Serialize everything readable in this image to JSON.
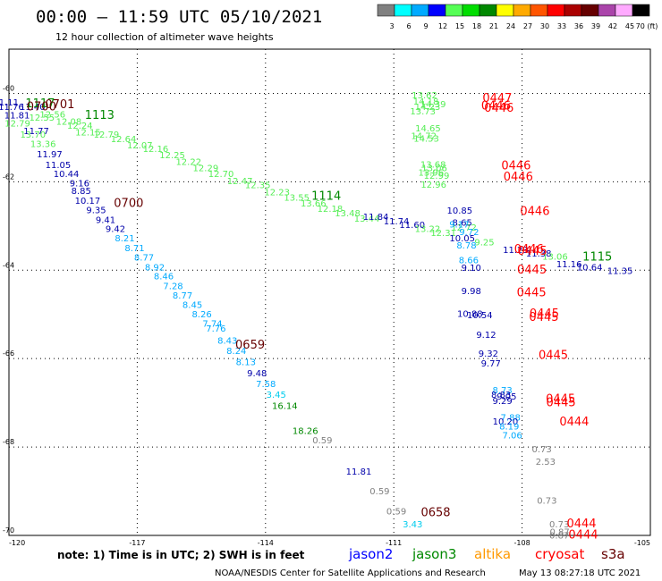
{
  "header": {
    "title": "00:00 – 11:59 UTC 05/10/2021",
    "subtitle": "12 hour collection of altimeter wave heights"
  },
  "colorbar": {
    "colors": [
      "#808080",
      "#00ffff",
      "#00aaff",
      "#0000ff",
      "#55ff55",
      "#00dd00",
      "#008800",
      "#ffff00",
      "#ffaa00",
      "#ff5500",
      "#ff0000",
      "#aa0000",
      "#660000",
      "#aa44aa",
      "#ffaaff",
      "#000000"
    ],
    "labels": [
      "3",
      "6",
      "9",
      "12",
      "15",
      "18",
      "21",
      "24",
      "27",
      "30",
      "33",
      "36",
      "39",
      "42",
      "45",
      "70 (ft)"
    ]
  },
  "footer": {
    "note": "note: 1) Time is in UTC; 2) SWH is in feet",
    "satellites": [
      {
        "name": "jason2",
        "color": "#0000ff"
      },
      {
        "name": "jason3",
        "color": "#008800"
      },
      {
        "name": "altika",
        "color": "#ff9900"
      },
      {
        "name": "cryosat",
        "color": "#ff0000"
      },
      {
        "name": "s3a",
        "color": "#660000"
      }
    ],
    "credit": "NOAA/NESDIS Center for Satellite Applications and Research",
    "timestamp": "May 13 08:27:18 UTC 2021"
  },
  "chart_data": {
    "type": "scatter",
    "title": "00:00 – 11:59 UTC 05/10/2021",
    "subtitle": "12 hour collection of altimeter wave heights",
    "xlim": [
      -120,
      -105
    ],
    "ylim": [
      -70,
      -59
    ],
    "xticks": [
      {
        "v": -120,
        "t": "-120"
      },
      {
        "v": -117,
        "t": "-117"
      },
      {
        "v": -114,
        "t": "-114"
      },
      {
        "v": -111,
        "t": "-111"
      },
      {
        "v": -108,
        "t": "-108"
      },
      {
        "v": -105,
        "t": "-105"
      }
    ],
    "yticks": [
      {
        "v": -60,
        "t": "-60"
      },
      {
        "v": -62,
        "t": "-62"
      },
      {
        "v": -64,
        "t": "-64"
      },
      {
        "v": -66,
        "t": "-66"
      },
      {
        "v": -68,
        "t": "-68"
      },
      {
        "v": -70,
        "t": "-70"
      }
    ],
    "grid": true,
    "swh_points": [
      {
        "x": -120.07,
        "y": -60.27,
        "v": "11.11",
        "c": "#0000aa"
      },
      {
        "x": -119.95,
        "y": -60.37,
        "v": "11.76",
        "c": "#0000aa"
      },
      {
        "x": -119.45,
        "y": -60.37,
        "v": "11.40",
        "c": "#0000aa"
      },
      {
        "x": -119.81,
        "y": -60.57,
        "v": "11.81",
        "c": "#0000aa"
      },
      {
        "x": -119.23,
        "y": -60.62,
        "v": "12.55",
        "c": "#55ee55"
      },
      {
        "x": -118.98,
        "y": -60.55,
        "v": "12.56",
        "c": "#55ee55"
      },
      {
        "x": -118.6,
        "y": -60.71,
        "v": "12.08",
        "c": "#55ee55"
      },
      {
        "x": -118.34,
        "y": -60.8,
        "v": "12.24",
        "c": "#55ee55"
      },
      {
        "x": -119.8,
        "y": -60.75,
        "v": "12.79",
        "c": "#55ee55"
      },
      {
        "x": -119.36,
        "y": -60.92,
        "v": "11.77",
        "c": "#0000aa"
      },
      {
        "x": -118.15,
        "y": -60.95,
        "v": "12.15",
        "c": "#55ee55"
      },
      {
        "x": -117.72,
        "y": -61.0,
        "v": "12.79",
        "c": "#55ee55"
      },
      {
        "x": -117.32,
        "y": -61.1,
        "v": "12.64",
        "c": "#55ee55"
      },
      {
        "x": -116.94,
        "y": -61.24,
        "v": "12.07",
        "c": "#55ee55"
      },
      {
        "x": -116.57,
        "y": -61.33,
        "v": "12.16",
        "c": "#55ee55"
      },
      {
        "x": -116.18,
        "y": -61.47,
        "v": "12.25",
        "c": "#55ee55"
      },
      {
        "x": -115.8,
        "y": -61.62,
        "v": "12.22",
        "c": "#55ee55"
      },
      {
        "x": -115.4,
        "y": -61.76,
        "v": "12.29",
        "c": "#55ee55"
      },
      {
        "x": -115.04,
        "y": -61.89,
        "v": "12.70",
        "c": "#55ee55"
      },
      {
        "x": -114.6,
        "y": -62.05,
        "v": "12.47",
        "c": "#55ee55"
      },
      {
        "x": -114.18,
        "y": -62.14,
        "v": "12.35",
        "c": "#55ee55"
      },
      {
        "x": -113.73,
        "y": -62.31,
        "v": "12.23",
        "c": "#55ee55"
      },
      {
        "x": -113.27,
        "y": -62.43,
        "v": "13.55",
        "c": "#55ee55"
      },
      {
        "x": -112.88,
        "y": -62.56,
        "v": "13.66",
        "c": "#55ee55"
      },
      {
        "x": -112.49,
        "y": -62.68,
        "v": "12.18",
        "c": "#55ee55"
      },
      {
        "x": -112.08,
        "y": -62.78,
        "v": "13.48",
        "c": "#55ee55"
      },
      {
        "x": -111.63,
        "y": -62.9,
        "v": "13.44",
        "c": "#55ee55"
      },
      {
        "x": -119.44,
        "y": -61.0,
        "v": "13.70",
        "c": "#55ee55"
      },
      {
        "x": -119.2,
        "y": -61.21,
        "v": "13.36",
        "c": "#55ee55"
      },
      {
        "x": -119.05,
        "y": -61.45,
        "v": "11.97",
        "c": "#0000aa"
      },
      {
        "x": -118.85,
        "y": -61.69,
        "v": "11.05",
        "c": "#0000aa"
      },
      {
        "x": -118.66,
        "y": -61.89,
        "v": "10.44",
        "c": "#0000aa"
      },
      {
        "x": -118.35,
        "y": -62.1,
        "v": "9.16",
        "c": "#0000aa"
      },
      {
        "x": -118.31,
        "y": -62.28,
        "v": "8.85",
        "c": "#0000aa"
      },
      {
        "x": -118.16,
        "y": -62.5,
        "v": "10.17",
        "c": "#0000aa"
      },
      {
        "x": -117.96,
        "y": -62.71,
        "v": "9.35",
        "c": "#0000aa"
      },
      {
        "x": -117.74,
        "y": -62.93,
        "v": "9.41",
        "c": "#0000aa"
      },
      {
        "x": -117.51,
        "y": -63.14,
        "v": "9.42",
        "c": "#0000aa"
      },
      {
        "x": -117.29,
        "y": -63.35,
        "v": "8.21",
        "c": "#00aaff"
      },
      {
        "x": -117.06,
        "y": -63.57,
        "v": "8.71",
        "c": "#00aaff"
      },
      {
        "x": -116.84,
        "y": -63.78,
        "v": "8.77",
        "c": "#00aaff"
      },
      {
        "x": -116.59,
        "y": -64.0,
        "v": "8.92",
        "c": "#00aaff"
      },
      {
        "x": -116.38,
        "y": -64.21,
        "v": "8.46",
        "c": "#00aaff"
      },
      {
        "x": -116.16,
        "y": -64.43,
        "v": "7.28",
        "c": "#00aaff"
      },
      {
        "x": -115.94,
        "y": -64.64,
        "v": "8.77",
        "c": "#00aaff"
      },
      {
        "x": -115.71,
        "y": -64.85,
        "v": "8.45",
        "c": "#00aaff"
      },
      {
        "x": -115.49,
        "y": -65.07,
        "v": "8.26",
        "c": "#00aaff"
      },
      {
        "x": -115.24,
        "y": -65.28,
        "v": "7.74",
        "c": "#00aaff"
      },
      {
        "x": -115.16,
        "y": -65.39,
        "v": "7.76",
        "c": "#00aaff"
      },
      {
        "x": -114.89,
        "y": -65.66,
        "v": "8.43",
        "c": "#00aaff"
      },
      {
        "x": -114.68,
        "y": -65.9,
        "v": "8.24",
        "c": "#00aaff"
      },
      {
        "x": -114.46,
        "y": -66.15,
        "v": "8.13",
        "c": "#00aaff"
      },
      {
        "x": -114.2,
        "y": -66.4,
        "v": "9.48",
        "c": "#0000aa"
      },
      {
        "x": -113.99,
        "y": -66.64,
        "v": "7.58",
        "c": "#00aaff"
      },
      {
        "x": -113.75,
        "y": -66.89,
        "v": "3.45",
        "c": "#00ccee"
      },
      {
        "x": -113.55,
        "y": -67.14,
        "v": "16.14",
        "c": "#008800"
      },
      {
        "x": -113.07,
        "y": -67.71,
        "v": "18.26",
        "c": "#008800"
      },
      {
        "x": -112.67,
        "y": -67.92,
        "v": "0.59",
        "c": "#808080"
      },
      {
        "x": -111.82,
        "y": -68.63,
        "v": "11.81",
        "c": "#0000aa"
      },
      {
        "x": -111.33,
        "y": -69.07,
        "v": "0.59",
        "c": "#808080"
      },
      {
        "x": -110.94,
        "y": -69.52,
        "v": "0.59",
        "c": "#808080"
      },
      {
        "x": -110.56,
        "y": -69.82,
        "v": "3.43",
        "c": "#00ccee"
      },
      {
        "x": -111.42,
        "y": -62.86,
        "v": "11.84",
        "c": "#0000aa"
      },
      {
        "x": -110.94,
        "y": -62.96,
        "v": "11.74",
        "c": "#0000aa"
      },
      {
        "x": -110.57,
        "y": -63.04,
        "v": "11.60",
        "c": "#0000aa"
      },
      {
        "x": -110.21,
        "y": -63.14,
        "v": "13.22",
        "c": "#55ee55"
      },
      {
        "x": -109.84,
        "y": -63.23,
        "v": "12.31",
        "c": "#55ee55"
      },
      {
        "x": -109.36,
        "y": -63.1,
        "v": "12.72",
        "c": "#55ee55"
      },
      {
        "x": -109.24,
        "y": -63.21,
        "v": "9.72",
        "c": "#00aaff"
      },
      {
        "x": -109.4,
        "y": -63.35,
        "v": "10.05",
        "c": "#0000aa"
      },
      {
        "x": -108.88,
        "y": -63.44,
        "v": "9.25",
        "c": "#55ee55"
      },
      {
        "x": -109.3,
        "y": -63.51,
        "v": "8.78",
        "c": "#00aaff"
      },
      {
        "x": -109.46,
        "y": -62.72,
        "v": "10.85",
        "c": "#0000aa"
      },
      {
        "x": -109.4,
        "y": -62.99,
        "v": "8.65",
        "c": "#0000aa"
      },
      {
        "x": -109.47,
        "y": -63.03,
        "v": "9.17",
        "c": "#00aaff"
      },
      {
        "x": -109.25,
        "y": -63.84,
        "v": "8.66",
        "c": "#00aaff"
      },
      {
        "x": -109.19,
        "y": -64.01,
        "v": "9.10",
        "c": "#0000aa"
      },
      {
        "x": -108.15,
        "y": -63.61,
        "v": "11.23",
        "c": "#0000aa"
      },
      {
        "x": -107.61,
        "y": -63.69,
        "v": "11.38",
        "c": "#0000aa"
      },
      {
        "x": -107.23,
        "y": -63.76,
        "v": "13.06",
        "c": "#55ee55"
      },
      {
        "x": -106.9,
        "y": -63.93,
        "v": "11.16",
        "c": "#0000aa"
      },
      {
        "x": -106.42,
        "y": -64.0,
        "v": "10.64",
        "c": "#0000aa"
      },
      {
        "x": -105.71,
        "y": -64.09,
        "v": "11.35",
        "c": "#0000aa"
      },
      {
        "x": -109.19,
        "y": -64.54,
        "v": "9.98",
        "c": "#0000aa"
      },
      {
        "x": -109.22,
        "y": -65.06,
        "v": "10.88",
        "c": "#0000aa"
      },
      {
        "x": -108.99,
        "y": -65.09,
        "v": "10.54",
        "c": "#0000aa"
      },
      {
        "x": -108.84,
        "y": -65.53,
        "v": "9.12",
        "c": "#0000aa"
      },
      {
        "x": -108.79,
        "y": -65.96,
        "v": "9.32",
        "c": "#0000aa"
      },
      {
        "x": -108.73,
        "y": -66.18,
        "v": "9.77",
        "c": "#0000aa"
      },
      {
        "x": -108.46,
        "y": -66.78,
        "v": "8.73",
        "c": "#00aaff"
      },
      {
        "x": -108.49,
        "y": -66.89,
        "v": "8.83",
        "c": "#0000aa"
      },
      {
        "x": -108.36,
        "y": -66.93,
        "v": "9.05",
        "c": "#0000aa"
      },
      {
        "x": -108.46,
        "y": -67.03,
        "v": "9.29",
        "c": "#0000aa"
      },
      {
        "x": -108.27,
        "y": -67.4,
        "v": "7.88",
        "c": "#00aaff"
      },
      {
        "x": -108.39,
        "y": -67.49,
        "v": "10.20",
        "c": "#0000aa"
      },
      {
        "x": -108.3,
        "y": -67.6,
        "v": "8.19",
        "c": "#00aaff"
      },
      {
        "x": -108.23,
        "y": -67.81,
        "v": "7.06",
        "c": "#00aaff"
      },
      {
        "x": -107.54,
        "y": -68.12,
        "v": "0.73",
        "c": "#808080"
      },
      {
        "x": -107.45,
        "y": -68.4,
        "v": "2.53",
        "c": "#808080"
      },
      {
        "x": -107.42,
        "y": -69.28,
        "v": "0.73",
        "c": "#808080"
      },
      {
        "x": -107.13,
        "y": -69.82,
        "v": "0.73",
        "c": "#808080"
      },
      {
        "x": -107.12,
        "y": -69.99,
        "v": "0.87",
        "c": "#808080"
      },
      {
        "x": -107.13,
        "y": -70.07,
        "v": "0.87",
        "c": "#808080"
      },
      {
        "x": -110.28,
        "y": -60.11,
        "v": "13.62",
        "c": "#55ee55"
      },
      {
        "x": -110.25,
        "y": -60.25,
        "v": "14.18",
        "c": "#55ee55"
      },
      {
        "x": -110.08,
        "y": -60.31,
        "v": "14.39",
        "c": "#55ee55"
      },
      {
        "x": -110.21,
        "y": -60.38,
        "v": "14.23",
        "c": "#55ee55"
      },
      {
        "x": -110.32,
        "y": -60.48,
        "v": "13.73",
        "c": "#55ee55"
      },
      {
        "x": -110.2,
        "y": -60.86,
        "v": "14.65",
        "c": "#55ee55"
      },
      {
        "x": -110.3,
        "y": -61.03,
        "v": "14.72",
        "c": "#55ee55"
      },
      {
        "x": -110.24,
        "y": -61.09,
        "v": "14.53",
        "c": "#55ee55"
      },
      {
        "x": -110.08,
        "y": -61.68,
        "v": "13.68",
        "c": "#55ee55"
      },
      {
        "x": -110.05,
        "y": -61.76,
        "v": "13.06",
        "c": "#55ee55"
      },
      {
        "x": -110.13,
        "y": -61.86,
        "v": "13.96",
        "c": "#55ee55"
      },
      {
        "x": -110.0,
        "y": -61.93,
        "v": "12.99",
        "c": "#55ee55"
      },
      {
        "x": -110.07,
        "y": -62.13,
        "v": "12.96",
        "c": "#55ee55"
      }
    ],
    "time_labels": [
      {
        "x": -118.81,
        "y": -60.33,
        "t": "0701",
        "c": "#660000"
      },
      {
        "x": -119.27,
        "y": -60.31,
        "t": "1117",
        "c": "#008800"
      },
      {
        "x": -119.24,
        "y": -60.39,
        "t": "0700",
        "c": "#660000"
      },
      {
        "x": -117.88,
        "y": -60.58,
        "t": "1113",
        "c": "#008800"
      },
      {
        "x": -117.2,
        "y": -62.57,
        "t": "0700",
        "c": "#660000"
      },
      {
        "x": -112.58,
        "y": -62.41,
        "t": "1114",
        "c": "#008800"
      },
      {
        "x": -114.36,
        "y": -65.77,
        "t": "0659",
        "c": "#660000"
      },
      {
        "x": -110.02,
        "y": -69.57,
        "t": "0658",
        "c": "#660000"
      },
      {
        "x": -108.58,
        "y": -60.19,
        "t": "0447",
        "c": "#ff0000"
      },
      {
        "x": -108.61,
        "y": -60.36,
        "t": "0446",
        "c": "#ff0000"
      },
      {
        "x": -108.54,
        "y": -60.42,
        "t": "0446",
        "c": "#ff0000"
      },
      {
        "x": -108.14,
        "y": -61.72,
        "t": "0446",
        "c": "#ff0000"
      },
      {
        "x": -108.09,
        "y": -61.97,
        "t": "0446",
        "c": "#ff0000"
      },
      {
        "x": -107.7,
        "y": -62.75,
        "t": "0446",
        "c": "#ff0000"
      },
      {
        "x": -107.84,
        "y": -63.61,
        "t": "0446",
        "c": "#ff0000"
      },
      {
        "x": -107.76,
        "y": -63.65,
        "t": "0445",
        "c": "#ff0000"
      },
      {
        "x": -107.77,
        "y": -64.08,
        "t": "0445",
        "c": "#ff0000"
      },
      {
        "x": -107.78,
        "y": -64.59,
        "t": "0445",
        "c": "#ff0000"
      },
      {
        "x": -107.48,
        "y": -65.07,
        "t": "0445",
        "c": "#ff0000"
      },
      {
        "x": -107.49,
        "y": -65.15,
        "t": "0445",
        "c": "#ff0000"
      },
      {
        "x": -107.27,
        "y": -66.01,
        "t": "0445",
        "c": "#ff0000"
      },
      {
        "x": -107.1,
        "y": -67.0,
        "t": "0445",
        "c": "#ff0000"
      },
      {
        "x": -107.09,
        "y": -67.08,
        "t": "0445",
        "c": "#ff0000"
      },
      {
        "x": -106.78,
        "y": -67.51,
        "t": "0444",
        "c": "#ff0000"
      },
      {
        "x": -106.61,
        "y": -69.82,
        "t": "0444",
        "c": "#ff0000"
      },
      {
        "x": -106.57,
        "y": -70.07,
        "t": "0444",
        "c": "#ff0000"
      },
      {
        "x": -106.24,
        "y": -63.78,
        "t": "1115",
        "c": "#008800"
      }
    ]
  }
}
